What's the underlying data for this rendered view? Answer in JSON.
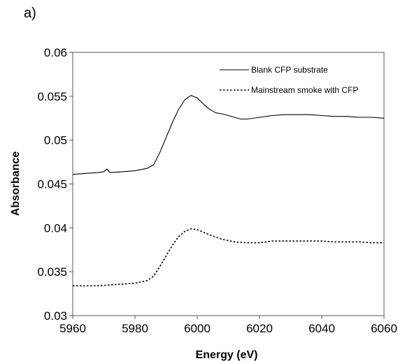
{
  "panel_label": "a)",
  "chart_data": {
    "type": "line",
    "title": "",
    "xlabel": "Energy (eV)",
    "ylabel": "Absorbance",
    "xlim": [
      5960,
      6060
    ],
    "ylim": [
      0.03,
      0.06
    ],
    "x_ticks": [
      5960,
      5980,
      6000,
      6020,
      6040,
      6060
    ],
    "x_tick_labels": [
      "5960",
      "5980",
      "6000",
      "6020",
      "6040",
      "6060"
    ],
    "y_ticks": [
      0.03,
      0.035,
      0.04,
      0.045,
      0.05,
      0.055,
      0.06
    ],
    "y_tick_labels": [
      "0.03",
      "0.035",
      "0.04",
      "0.045",
      "0.05",
      "0.055",
      "0.06"
    ],
    "grid": false,
    "legend_position": "top-right",
    "series": [
      {
        "name": "Blank CFP substrate",
        "line_style": "solid",
        "color": "#000000",
        "points": [
          [
            5960,
            0.0461
          ],
          [
            5964,
            0.0462
          ],
          [
            5968,
            0.0463
          ],
          [
            5970,
            0.0464
          ],
          [
            5971,
            0.0467
          ],
          [
            5972,
            0.0463
          ],
          [
            5976,
            0.0464
          ],
          [
            5980,
            0.0465
          ],
          [
            5984,
            0.0468
          ],
          [
            5986,
            0.0472
          ],
          [
            5988,
            0.0486
          ],
          [
            5990,
            0.0503
          ],
          [
            5992,
            0.052
          ],
          [
            5994,
            0.0535
          ],
          [
            5996,
            0.0546
          ],
          [
            5998,
            0.0551
          ],
          [
            6000,
            0.0548
          ],
          [
            6002,
            0.0541
          ],
          [
            6004,
            0.0535
          ],
          [
            6006,
            0.0531
          ],
          [
            6008,
            0.053
          ],
          [
            6010,
            0.0528
          ],
          [
            6012,
            0.0526
          ],
          [
            6014,
            0.0524
          ],
          [
            6016,
            0.0524
          ],
          [
            6020,
            0.0526
          ],
          [
            6024,
            0.0528
          ],
          [
            6028,
            0.0529
          ],
          [
            6032,
            0.0529
          ],
          [
            6036,
            0.0529
          ],
          [
            6040,
            0.0528
          ],
          [
            6044,
            0.0527
          ],
          [
            6048,
            0.0527
          ],
          [
            6052,
            0.0526
          ],
          [
            6056,
            0.0526
          ],
          [
            6060,
            0.0525
          ]
        ]
      },
      {
        "name": "Mainstream smoke with CFP",
        "line_style": "dotted",
        "color": "#000000",
        "points": [
          [
            5960,
            0.0334
          ],
          [
            5964,
            0.0334
          ],
          [
            5968,
            0.0334
          ],
          [
            5972,
            0.0335
          ],
          [
            5976,
            0.0336
          ],
          [
            5980,
            0.0337
          ],
          [
            5984,
            0.034
          ],
          [
            5986,
            0.0345
          ],
          [
            5988,
            0.0356
          ],
          [
            5990,
            0.0368
          ],
          [
            5992,
            0.038
          ],
          [
            5994,
            0.039
          ],
          [
            5996,
            0.0396
          ],
          [
            5998,
            0.0399
          ],
          [
            6000,
            0.0398
          ],
          [
            6002,
            0.0395
          ],
          [
            6004,
            0.0392
          ],
          [
            6008,
            0.0387
          ],
          [
            6012,
            0.0384
          ],
          [
            6016,
            0.0383
          ],
          [
            6020,
            0.0383
          ],
          [
            6024,
            0.0385
          ],
          [
            6028,
            0.0385
          ],
          [
            6032,
            0.0385
          ],
          [
            6036,
            0.0385
          ],
          [
            6040,
            0.0385
          ],
          [
            6044,
            0.0384
          ],
          [
            6048,
            0.0384
          ],
          [
            6052,
            0.0384
          ],
          [
            6056,
            0.0383
          ],
          [
            6060,
            0.0383
          ]
        ]
      }
    ]
  }
}
